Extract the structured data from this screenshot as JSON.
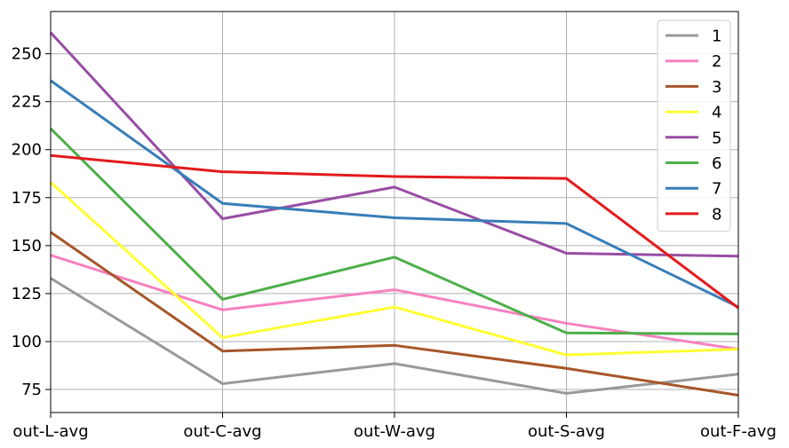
{
  "chart_data": {
    "type": "line",
    "title": "",
    "xlabel": "",
    "ylabel": "",
    "categories": [
      "out-L-avg",
      "out-C-avg",
      "out-W-avg",
      "out-S-avg",
      "out-F-avg"
    ],
    "ylim": [
      63,
      272
    ],
    "yticks": [
      75,
      100,
      125,
      150,
      175,
      200,
      225,
      250
    ],
    "grid": true,
    "legend_position": "top-right",
    "series": [
      {
        "name": "1",
        "color": "#999999",
        "values": [
          133,
          78,
          88.5,
          73,
          83
        ]
      },
      {
        "name": "2",
        "color": "#f781bf",
        "values": [
          145,
          116.5,
          127,
          109.5,
          96
        ]
      },
      {
        "name": "3",
        "color": "#a65628",
        "values": [
          157,
          95,
          98,
          86,
          72
        ]
      },
      {
        "name": "4",
        "color": "#ffff33",
        "values": [
          183,
          102,
          118,
          93,
          96
        ]
      },
      {
        "name": "5",
        "color": "#984ea3",
        "values": [
          261,
          164,
          180.5,
          146,
          144.5
        ]
      },
      {
        "name": "6",
        "color": "#4daf4a",
        "values": [
          211,
          122,
          144,
          104.5,
          104
        ]
      },
      {
        "name": "7",
        "color": "#377eb8",
        "values": [
          236,
          172,
          164.5,
          161.5,
          118
        ]
      },
      {
        "name": "8",
        "color": "#e41a1c",
        "values": [
          197,
          188.5,
          186,
          185,
          117.5
        ]
      }
    ]
  }
}
